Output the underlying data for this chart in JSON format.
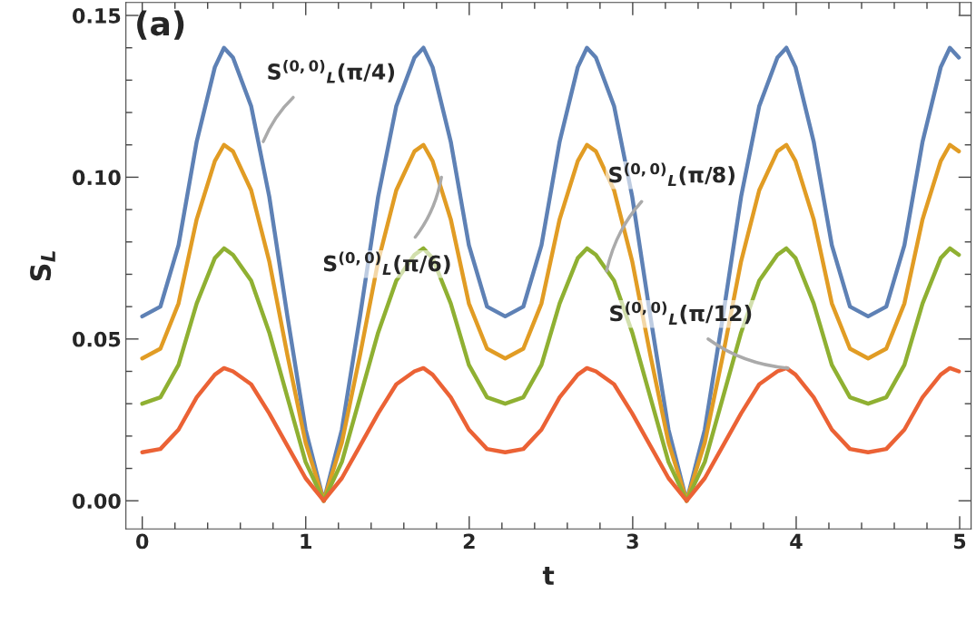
{
  "chart_data": {
    "type": "line",
    "xlabel": "t",
    "ylabel": "S$_{L}$",
    "x": [
      0,
      0.111,
      0.222,
      0.333,
      0.444,
      0.5,
      0.555,
      0.666,
      0.777,
      0.888,
      0.999,
      1.11,
      1.221,
      1.332,
      1.443,
      1.554,
      1.665,
      1.72,
      1.776,
      1.887,
      1.998,
      2.109,
      2.22,
      2.331,
      2.442,
      2.553,
      2.664,
      2.72,
      2.775,
      2.886,
      2.997,
      3.108,
      3.219,
      3.33,
      3.441,
      3.552,
      3.663,
      3.774,
      3.885,
      3.94,
      3.996,
      4.107,
      4.218,
      4.329,
      4.44,
      4.551,
      4.662,
      4.773,
      4.884,
      4.94,
      4.995
    ],
    "series": [
      {
        "color": "#5e81b5",
        "values": [
          0.057,
          0.06,
          0.079,
          0.111,
          0.134,
          0.14,
          0.137,
          0.122,
          0.094,
          0.057,
          0.022,
          0,
          0.022,
          0.057,
          0.094,
          0.122,
          0.137,
          0.14,
          0.134,
          0.111,
          0.079,
          0.06,
          0.057,
          0.06,
          0.079,
          0.111,
          0.134,
          0.14,
          0.137,
          0.122,
          0.094,
          0.057,
          0.022,
          0,
          0.022,
          0.057,
          0.094,
          0.122,
          0.137,
          0.14,
          0.134,
          0.111,
          0.079,
          0.06,
          0.057,
          0.06,
          0.079,
          0.111,
          0.134,
          0.14,
          0.137
        ]
      },
      {
        "color": "#e19c24",
        "values": [
          0.044,
          0.047,
          0.061,
          0.087,
          0.105,
          0.11,
          0.108,
          0.096,
          0.074,
          0.045,
          0.018,
          0,
          0.018,
          0.045,
          0.074,
          0.096,
          0.108,
          0.11,
          0.105,
          0.087,
          0.061,
          0.047,
          0.044,
          0.047,
          0.061,
          0.087,
          0.105,
          0.11,
          0.108,
          0.096,
          0.074,
          0.045,
          0.018,
          0,
          0.018,
          0.045,
          0.074,
          0.096,
          0.108,
          0.11,
          0.105,
          0.087,
          0.061,
          0.047,
          0.044,
          0.047,
          0.061,
          0.087,
          0.105,
          0.11,
          0.108
        ]
      },
      {
        "color": "#8fb032",
        "values": [
          0.03,
          0.032,
          0.042,
          0.061,
          0.075,
          0.078,
          0.076,
          0.068,
          0.052,
          0.032,
          0.012,
          0,
          0.012,
          0.032,
          0.052,
          0.068,
          0.076,
          0.078,
          0.075,
          0.061,
          0.042,
          0.032,
          0.03,
          0.032,
          0.042,
          0.061,
          0.075,
          0.078,
          0.076,
          0.068,
          0.052,
          0.032,
          0.012,
          0,
          0.012,
          0.032,
          0.052,
          0.068,
          0.076,
          0.078,
          0.075,
          0.061,
          0.042,
          0.032,
          0.03,
          0.032,
          0.042,
          0.061,
          0.075,
          0.078,
          0.076
        ]
      },
      {
        "color": "#eb6235",
        "values": [
          0.015,
          0.016,
          0.022,
          0.032,
          0.039,
          0.041,
          0.04,
          0.036,
          0.027,
          0.017,
          0.007,
          0,
          0.007,
          0.017,
          0.027,
          0.036,
          0.04,
          0.041,
          0.039,
          0.032,
          0.022,
          0.016,
          0.015,
          0.016,
          0.022,
          0.032,
          0.039,
          0.041,
          0.04,
          0.036,
          0.027,
          0.017,
          0.007,
          0,
          0.007,
          0.017,
          0.027,
          0.036,
          0.04,
          0.041,
          0.039,
          0.032,
          0.022,
          0.016,
          0.015,
          0.016,
          0.022,
          0.032,
          0.039,
          0.041,
          0.04
        ]
      }
    ],
    "xlim": [
      -0.1,
      5.07
    ],
    "ylim": [
      -0.0087,
      0.154
    ],
    "xticks": [
      0,
      1,
      2,
      3,
      4,
      5
    ],
    "yticks": [
      {
        "value": 0,
        "label": "0.00"
      },
      {
        "value": 0.05,
        "label": "0.05"
      },
      {
        "value": 0.1,
        "label": "0.10"
      },
      {
        "value": 0.15,
        "label": "0.15"
      }
    ],
    "grid": false,
    "legend": false,
    "annotations": [
      "(a)",
      {
        "text": "S$^{(0,0)}$$_{L}$(π/4)",
        "x": 0.74,
        "y": 0.111
      },
      {
        "text": "S$^{(0,0)}$$_{L}$(π/6)",
        "x": 1.83,
        "y": 0.1
      },
      {
        "text": "S$^{(0,0)}$$_{L}$(π/8)",
        "x": 2.84,
        "y": 0.071
      },
      {
        "text": "S$^{(0,0)}$$_{L}$(π/12)",
        "x": 3.95,
        "y": 0.041
      }
    ]
  }
}
